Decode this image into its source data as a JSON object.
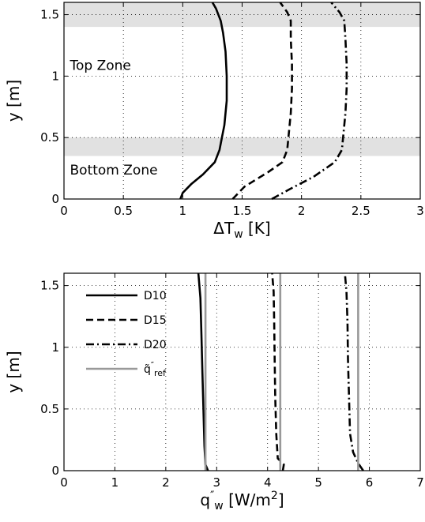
{
  "chart_data": [
    {
      "type": "line",
      "xlabel": "ΔT",
      "xlabel_sub": "w",
      "xlabel_unit": "[K]",
      "ylabel": "y [m]",
      "xlim": [
        0,
        3
      ],
      "ylim": [
        0,
        1.6
      ],
      "xticks": [
        0,
        0.5,
        1,
        1.5,
        2,
        2.5,
        3
      ],
      "xtick_labels": [
        "0",
        "0.5",
        "1",
        "1.5",
        "2",
        "2.5",
        "3"
      ],
      "yticks": [
        0,
        0.5,
        1,
        1.5
      ],
      "ytick_labels": [
        "0",
        "0.5",
        "1",
        "1.5"
      ],
      "grid": true,
      "shaded_bands": [
        [
          0.35,
          0.5
        ],
        [
          1.4,
          1.6
        ]
      ],
      "annotations": [
        {
          "text": "Top Zone",
          "x": 0.05,
          "y": 1.05
        },
        {
          "text": "Bottom Zone",
          "x": 0.05,
          "y": 0.2
        }
      ],
      "series": [
        {
          "name": "D10",
          "style": "solid",
          "color": "#000000",
          "points": [
            [
              0.98,
              0.0
            ],
            [
              1.0,
              0.05
            ],
            [
              1.07,
              0.12
            ],
            [
              1.17,
              0.2
            ],
            [
              1.27,
              0.3
            ],
            [
              1.31,
              0.4
            ],
            [
              1.33,
              0.5
            ],
            [
              1.35,
              0.6
            ],
            [
              1.37,
              0.8
            ],
            [
              1.37,
              1.0
            ],
            [
              1.36,
              1.2
            ],
            [
              1.34,
              1.35
            ],
            [
              1.32,
              1.45
            ],
            [
              1.28,
              1.55
            ],
            [
              1.25,
              1.6
            ]
          ]
        },
        {
          "name": "D15",
          "style": "dashed",
          "color": "#000000",
          "points": [
            [
              1.42,
              0.0
            ],
            [
              1.52,
              0.1
            ],
            [
              1.72,
              0.22
            ],
            [
              1.84,
              0.3
            ],
            [
              1.88,
              0.4
            ],
            [
              1.89,
              0.5
            ],
            [
              1.91,
              0.7
            ],
            [
              1.92,
              0.9
            ],
            [
              1.92,
              1.1
            ],
            [
              1.91,
              1.3
            ],
            [
              1.91,
              1.45
            ],
            [
              1.88,
              1.52
            ],
            [
              1.82,
              1.6
            ]
          ]
        },
        {
          "name": "D20",
          "style": "dashdot",
          "color": "#000000",
          "points": [
            [
              1.75,
              0.0
            ],
            [
              1.9,
              0.08
            ],
            [
              2.1,
              0.18
            ],
            [
              2.28,
              0.3
            ],
            [
              2.34,
              0.4
            ],
            [
              2.35,
              0.5
            ],
            [
              2.37,
              0.7
            ],
            [
              2.38,
              0.9
            ],
            [
              2.38,
              1.1
            ],
            [
              2.37,
              1.3
            ],
            [
              2.36,
              1.45
            ],
            [
              2.32,
              1.52
            ],
            [
              2.25,
              1.6
            ]
          ]
        }
      ]
    },
    {
      "type": "line",
      "xlabel": "q",
      "xlabel_sup": "″",
      "xlabel_sub": "w",
      "xlabel_unit": "[W/m",
      "xlabel_unit_sup": "2",
      "xlabel_unit_close": "]",
      "ylabel": "y [m]",
      "xlim": [
        0,
        7
      ],
      "ylim": [
        0,
        1.6
      ],
      "xticks": [
        0,
        1,
        2,
        3,
        4,
        5,
        6,
        7
      ],
      "xtick_labels": [
        "0",
        "1",
        "2",
        "3",
        "4",
        "5",
        "6",
        "7"
      ],
      "yticks": [
        0,
        0.5,
        1,
        1.5
      ],
      "ytick_labels": [
        "0",
        "0.5",
        "1",
        "1.5"
      ],
      "grid": true,
      "legend": {
        "position": "top-left",
        "entries": [
          {
            "label": "D10",
            "style": "solid",
            "color": "#000000"
          },
          {
            "label": "D15",
            "style": "dashed",
            "color": "#000000"
          },
          {
            "label": "D20",
            "style": "dashdot",
            "color": "#000000"
          },
          {
            "label": "q̃",
            "label_sup": "″",
            "label_sub": "ref",
            "style": "solid",
            "color": "#999999"
          }
        ]
      },
      "series": [
        {
          "name": "D10",
          "style": "solid",
          "color": "#000000",
          "points": [
            [
              2.83,
              0.0
            ],
            [
              2.78,
              0.05
            ],
            [
              2.76,
              0.2
            ],
            [
              2.74,
              0.5
            ],
            [
              2.72,
              0.8
            ],
            [
              2.7,
              1.1
            ],
            [
              2.68,
              1.4
            ],
            [
              2.64,
              1.6
            ]
          ]
        },
        {
          "name": "D15",
          "style": "dashed",
          "color": "#000000",
          "points": [
            [
              4.3,
              0.0
            ],
            [
              4.32,
              0.05
            ],
            [
              4.2,
              0.1
            ],
            [
              4.17,
              0.3
            ],
            [
              4.15,
              0.6
            ],
            [
              4.14,
              0.9
            ],
            [
              4.13,
              1.2
            ],
            [
              4.12,
              1.45
            ],
            [
              4.09,
              1.6
            ]
          ]
        },
        {
          "name": "D20",
          "style": "dashdot",
          "color": "#000000",
          "points": [
            [
              5.88,
              0.0
            ],
            [
              5.78,
              0.06
            ],
            [
              5.68,
              0.15
            ],
            [
              5.62,
              0.3
            ],
            [
              5.6,
              0.6
            ],
            [
              5.58,
              0.9
            ],
            [
              5.57,
              1.2
            ],
            [
              5.55,
              1.45
            ],
            [
              5.52,
              1.6
            ]
          ]
        },
        {
          "name": "ref D10",
          "style": "solid",
          "color": "#999999",
          "points": [
            [
              2.78,
              0.0
            ],
            [
              2.78,
              1.6
            ]
          ]
        },
        {
          "name": "ref D15",
          "style": "solid",
          "color": "#999999",
          "points": [
            [
              4.25,
              0.0
            ],
            [
              4.25,
              1.6
            ]
          ]
        },
        {
          "name": "ref D20",
          "style": "solid",
          "color": "#999999",
          "points": [
            [
              5.78,
              0.0
            ],
            [
              5.78,
              1.6
            ]
          ]
        }
      ]
    }
  ]
}
